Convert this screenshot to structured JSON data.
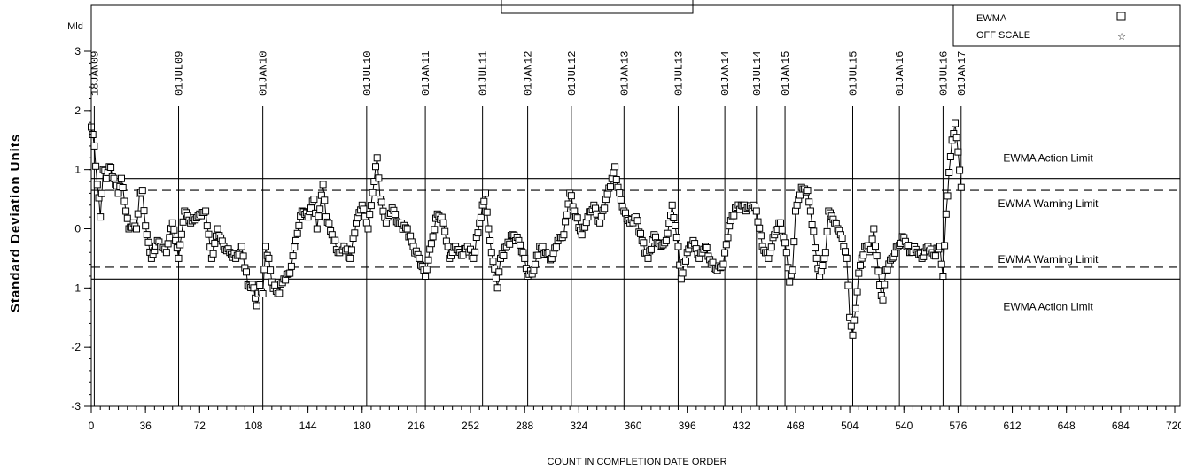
{
  "chart_data": {
    "type": "line",
    "ylabel": "Standard Deviation Units",
    "xlabel": "COUNT IN COMPLETION DATE ORDER",
    "corner_label": "Mld",
    "xlim": [
      0,
      720
    ],
    "ylim": [
      -3,
      3
    ],
    "x_ticks": [
      0,
      36,
      72,
      108,
      144,
      180,
      216,
      252,
      288,
      324,
      360,
      396,
      432,
      468,
      504,
      540,
      576,
      612,
      648,
      684,
      720
    ],
    "y_ticks": [
      -3,
      -2,
      -1,
      0,
      1,
      2,
      3
    ],
    "date_markers": [
      {
        "x": 2,
        "label": "18JAN09"
      },
      {
        "x": 58,
        "label": "01JUL09"
      },
      {
        "x": 114,
        "label": "01JAN10"
      },
      {
        "x": 183,
        "label": "01JUL10"
      },
      {
        "x": 222,
        "label": "01JAN11"
      },
      {
        "x": 260,
        "label": "01JUL11"
      },
      {
        "x": 290,
        "label": "01JAN12"
      },
      {
        "x": 319,
        "label": "01JUL12"
      },
      {
        "x": 354,
        "label": "01JAN13"
      },
      {
        "x": 390,
        "label": "01JUL13"
      },
      {
        "x": 421,
        "label": "01JAN14"
      },
      {
        "x": 442,
        "label": "01JUL14"
      },
      {
        "x": 461,
        "label": "01JAN15"
      },
      {
        "x": 506,
        "label": "01JUL15"
      },
      {
        "x": 537,
        "label": "01JAN16"
      },
      {
        "x": 566,
        "label": "01JUL16"
      },
      {
        "x": 578,
        "label": "01JAN17"
      }
    ],
    "limits": [
      {
        "value": 0.85,
        "style": "solid",
        "label": "EWMA Action Limit"
      },
      {
        "value": 0.65,
        "style": "dashed",
        "label": "EWMA Warning Limit"
      },
      {
        "value": -0.65,
        "style": "dashed",
        "label": "EWMA Warning Limit"
      },
      {
        "value": -0.85,
        "style": "solid",
        "label": "EWMA Action Limit"
      }
    ],
    "legend": [
      {
        "label": "EWMA",
        "symbol": "square"
      },
      {
        "label": "OFF SCALE",
        "symbol": "star"
      }
    ],
    "series": [
      {
        "name": "EWMA",
        "anchors": [
          [
            0,
            1.72
          ],
          [
            2,
            1.4
          ],
          [
            4,
            0.75
          ],
          [
            6,
            0.2
          ],
          [
            8,
            1.0
          ],
          [
            10,
            0.85
          ],
          [
            12,
            1.05
          ],
          [
            15,
            0.85
          ],
          [
            18,
            0.6
          ],
          [
            20,
            0.85
          ],
          [
            23,
            0.3
          ],
          [
            25,
            0.0
          ],
          [
            28,
            0.1
          ],
          [
            30,
            0.0
          ],
          [
            32,
            0.6
          ],
          [
            34,
            0.65
          ],
          [
            36,
            0.05
          ],
          [
            40,
            -0.5
          ],
          [
            44,
            -0.2
          ],
          [
            50,
            -0.4
          ],
          [
            54,
            0.1
          ],
          [
            58,
            -0.5
          ],
          [
            62,
            0.3
          ],
          [
            66,
            0.1
          ],
          [
            72,
            0.25
          ],
          [
            76,
            0.3
          ],
          [
            80,
            -0.5
          ],
          [
            84,
            0.0
          ],
          [
            88,
            -0.3
          ],
          [
            92,
            -0.4
          ],
          [
            96,
            -0.5
          ],
          [
            100,
            -0.3
          ],
          [
            104,
            -0.95
          ],
          [
            108,
            -1.0
          ],
          [
            110,
            -1.3
          ],
          [
            112,
            -0.95
          ],
          [
            114,
            -1.1
          ],
          [
            116,
            -0.3
          ],
          [
            118,
            -0.5
          ],
          [
            120,
            -0.9
          ],
          [
            124,
            -1.1
          ],
          [
            128,
            -0.85
          ],
          [
            132,
            -0.75
          ],
          [
            136,
            -0.2
          ],
          [
            140,
            0.3
          ],
          [
            144,
            0.2
          ],
          [
            148,
            0.5
          ],
          [
            150,
            0.0
          ],
          [
            154,
            0.75
          ],
          [
            156,
            0.2
          ],
          [
            160,
            -0.1
          ],
          [
            164,
            -0.4
          ],
          [
            168,
            -0.3
          ],
          [
            172,
            -0.5
          ],
          [
            176,
            0.1
          ],
          [
            180,
            0.4
          ],
          [
            184,
            0.0
          ],
          [
            188,
            0.8
          ],
          [
            190,
            1.2
          ],
          [
            192,
            0.5
          ],
          [
            196,
            0.1
          ],
          [
            200,
            0.35
          ],
          [
            204,
            0.1
          ],
          [
            210,
            0.0
          ],
          [
            214,
            -0.3
          ],
          [
            218,
            -0.5
          ],
          [
            222,
            -0.8
          ],
          [
            226,
            -0.25
          ],
          [
            230,
            0.25
          ],
          [
            234,
            0.1
          ],
          [
            238,
            -0.5
          ],
          [
            242,
            -0.3
          ],
          [
            246,
            -0.45
          ],
          [
            250,
            -0.3
          ],
          [
            254,
            -0.5
          ],
          [
            258,
            0.1
          ],
          [
            262,
            0.6
          ],
          [
            264,
            0.0
          ],
          [
            266,
            -0.4
          ],
          [
            270,
            -1.0
          ],
          [
            272,
            -0.5
          ],
          [
            276,
            -0.3
          ],
          [
            280,
            -0.1
          ],
          [
            284,
            -0.2
          ],
          [
            288,
            -0.5
          ],
          [
            290,
            -0.8
          ],
          [
            294,
            -0.7
          ],
          [
            298,
            -0.3
          ],
          [
            302,
            -0.4
          ],
          [
            306,
            -0.5
          ],
          [
            310,
            -0.2
          ],
          [
            314,
            -0.1
          ],
          [
            318,
            0.6
          ],
          [
            322,
            0.2
          ],
          [
            326,
            -0.1
          ],
          [
            330,
            0.2
          ],
          [
            334,
            0.4
          ],
          [
            338,
            0.1
          ],
          [
            342,
            0.5
          ],
          [
            346,
            0.85
          ],
          [
            348,
            1.05
          ],
          [
            350,
            0.7
          ],
          [
            354,
            0.3
          ],
          [
            358,
            0.1
          ],
          [
            362,
            0.2
          ],
          [
            366,
            -0.2
          ],
          [
            370,
            -0.5
          ],
          [
            374,
            -0.1
          ],
          [
            378,
            -0.3
          ],
          [
            382,
            -0.2
          ],
          [
            386,
            0.4
          ],
          [
            390,
            -0.3
          ],
          [
            392,
            -0.85
          ],
          [
            396,
            -0.4
          ],
          [
            400,
            -0.2
          ],
          [
            404,
            -0.5
          ],
          [
            408,
            -0.3
          ],
          [
            412,
            -0.6
          ],
          [
            416,
            -0.7
          ],
          [
            420,
            -0.6
          ],
          [
            424,
            0.05
          ],
          [
            428,
            0.35
          ],
          [
            432,
            0.4
          ],
          [
            436,
            0.35
          ],
          [
            440,
            0.4
          ],
          [
            442,
            0.3
          ],
          [
            446,
            -0.3
          ],
          [
            450,
            -0.5
          ],
          [
            454,
            -0.1
          ],
          [
            458,
            0.1
          ],
          [
            462,
            -0.4
          ],
          [
            464,
            -0.9
          ],
          [
            466,
            -0.7
          ],
          [
            468,
            0.3
          ],
          [
            470,
            0.5
          ],
          [
            472,
            0.7
          ],
          [
            476,
            0.65
          ],
          [
            478,
            0.3
          ],
          [
            482,
            -0.5
          ],
          [
            484,
            -0.8
          ],
          [
            488,
            -0.4
          ],
          [
            490,
            0.3
          ],
          [
            494,
            0.1
          ],
          [
            498,
            -0.1
          ],
          [
            502,
            -0.5
          ],
          [
            504,
            -1.5
          ],
          [
            506,
            -1.8
          ],
          [
            508,
            -1.35
          ],
          [
            510,
            -0.75
          ],
          [
            514,
            -0.3
          ],
          [
            518,
            -0.35
          ],
          [
            520,
            0.0
          ],
          [
            524,
            -0.95
          ],
          [
            526,
            -1.2
          ],
          [
            528,
            -0.7
          ],
          [
            532,
            -0.5
          ],
          [
            536,
            -0.3
          ],
          [
            540,
            -0.15
          ],
          [
            544,
            -0.4
          ],
          [
            548,
            -0.35
          ],
          [
            552,
            -0.5
          ],
          [
            556,
            -0.3
          ],
          [
            560,
            -0.45
          ],
          [
            564,
            -0.3
          ],
          [
            566,
            -0.8
          ],
          [
            568,
            0.25
          ],
          [
            570,
            0.95
          ],
          [
            572,
            1.5
          ],
          [
            574,
            1.78
          ],
          [
            576,
            1.3
          ],
          [
            578,
            0.7
          ]
        ]
      }
    ]
  }
}
